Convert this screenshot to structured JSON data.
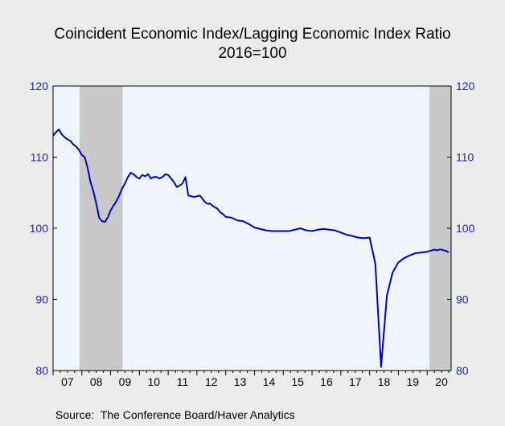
{
  "chart_data": {
    "type": "line",
    "title": "Coincident Economic Index/Lagging Economic Index Ratio",
    "subtitle": "2016=100",
    "source": "Source:  The Conference Board/Haver Analytics",
    "xlabel": "",
    "ylabel": "",
    "ylim": [
      80,
      120
    ],
    "xlim": [
      2007.0,
      2020.833
    ],
    "yticks": [
      80,
      90,
      100,
      110,
      120
    ],
    "yticks_right": [
      80,
      90,
      100,
      110,
      120
    ],
    "xtick_labels": [
      "07",
      "08",
      "09",
      "10",
      "11",
      "12",
      "13",
      "14",
      "15",
      "16",
      "17",
      "18",
      "19",
      "20"
    ],
    "grid": false,
    "recessions": [
      [
        2007.917,
        2009.417
      ],
      [
        2020.083,
        2020.833
      ]
    ],
    "colors": {
      "line": "#0000C0",
      "plot_bg": "#F0F6FF",
      "recession": "#C8C8C8",
      "axis_labels": "#2222AA",
      "page_bg": "#ECECEC"
    },
    "series": [
      {
        "x": [
          2007.0,
          2007.1,
          2007.2,
          2007.3,
          2007.4,
          2007.5,
          2007.6,
          2007.7,
          2007.8,
          2007.9,
          2008.0,
          2008.1,
          2008.2,
          2008.3,
          2008.4,
          2008.5,
          2008.6,
          2008.7,
          2008.8,
          2008.9,
          2009.0,
          2009.1,
          2009.2,
          2009.3,
          2009.4,
          2009.5,
          2009.6,
          2009.7,
          2009.8,
          2009.9,
          2010.0,
          2010.1,
          2010.2,
          2010.3,
          2010.4,
          2010.5,
          2010.6,
          2010.7,
          2010.8,
          2010.9,
          2011.0,
          2011.1,
          2011.2,
          2011.3,
          2011.4,
          2011.5,
          2011.6,
          2011.7,
          2011.8,
          2011.9,
          2012.0,
          2012.1,
          2012.2,
          2012.3,
          2012.4,
          2012.45,
          2012.5,
          2012.6,
          2012.7,
          2012.8,
          2012.9,
          2013.0,
          2013.2,
          2013.4,
          2013.6,
          2013.8,
          2014.0,
          2014.2,
          2014.4,
          2014.6,
          2014.8,
          2015.0,
          2015.2,
          2015.4,
          2015.6,
          2015.8,
          2016.0,
          2016.2,
          2016.4,
          2016.6,
          2016.8,
          2017.0,
          2017.2,
          2017.4,
          2017.6,
          2017.8,
          2018.0,
          2018.2,
          2018.4,
          2018.6,
          2018.8,
          2019.0,
          2019.2,
          2019.4,
          2019.6,
          2019.8,
          2020.0,
          2020.08,
          2020.17,
          2020.25,
          2020.33,
          2020.42,
          2020.5,
          2020.58,
          2020.67,
          2020.75
        ],
        "values": [
          113.0,
          113.5,
          113.9,
          113.2,
          112.8,
          112.5,
          112.3,
          111.8,
          111.5,
          111.0,
          110.3,
          110.0,
          108.5,
          106.5,
          105.2,
          103.5,
          101.5,
          101.0,
          100.9,
          101.5,
          102.5,
          103.2,
          103.8,
          104.6,
          105.6,
          106.3,
          107.2,
          107.8,
          107.6,
          107.2,
          107.0,
          107.5,
          107.3,
          107.6,
          107.0,
          107.2,
          107.2,
          107.0,
          107.2,
          107.6,
          107.5,
          107.0,
          106.5,
          105.8,
          106.0,
          106.3,
          107.2,
          104.6,
          104.5,
          104.4,
          104.5,
          104.6,
          104.1,
          103.6,
          103.4,
          103.5,
          103.3,
          103.0,
          102.8,
          102.3,
          102.0,
          101.6,
          101.5,
          101.1,
          101.0,
          100.6,
          100.1,
          99.9,
          99.7,
          99.6,
          99.6,
          99.6,
          99.6,
          99.8,
          100.0,
          99.7,
          99.6,
          99.8,
          99.9,
          99.8,
          99.7,
          99.4,
          99.1,
          98.9,
          98.7,
          98.6,
          98.7,
          95.0,
          80.5,
          90.5,
          93.8,
          95.2,
          95.8,
          96.2,
          96.5,
          96.6,
          96.7,
          96.8,
          96.9,
          97.0,
          96.9,
          97.0,
          97.0,
          96.9,
          96.8,
          96.6
        ]
      }
    ]
  }
}
